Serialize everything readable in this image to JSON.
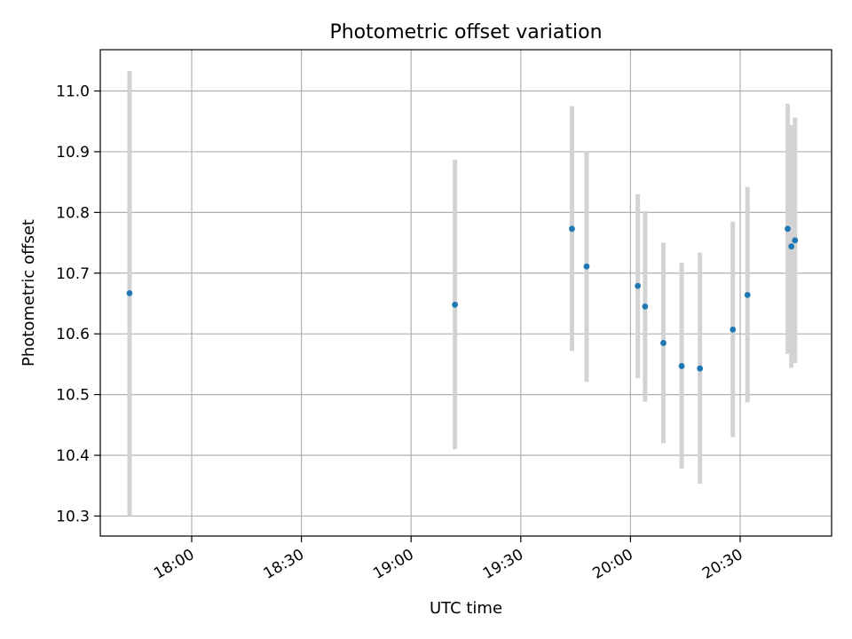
{
  "chart_data": {
    "type": "scatter",
    "title": "Photometric offset variation",
    "xlabel": "UTC time",
    "ylabel": "Photometric offset",
    "x_axis_type": "time",
    "xlim": [
      "17:35",
      "20:55"
    ],
    "ylim": [
      10.267,
      11.068
    ],
    "x_ticks": [
      "18:00",
      "18:30",
      "19:00",
      "19:30",
      "20:00",
      "20:30"
    ],
    "y_ticks": [
      "10.3",
      "10.4",
      "10.5",
      "10.6",
      "10.7",
      "10.8",
      "10.9",
      "11.0"
    ],
    "grid": true,
    "legend": "none",
    "colors": {
      "point": "#1f77b4",
      "errorbar": "#d3d3d3",
      "grid": "#b0b0b0",
      "axes": "#000000"
    },
    "points": [
      {
        "x": "17:43",
        "y": 10.667,
        "low": 10.3,
        "high": 11.033
      },
      {
        "x": "19:12",
        "y": 10.648,
        "low": 10.41,
        "high": 10.887
      },
      {
        "x": "19:44",
        "y": 10.773,
        "low": 10.572,
        "high": 10.975
      },
      {
        "x": "19:48",
        "y": 10.711,
        "low": 10.521,
        "high": 10.901
      },
      {
        "x": "20:02",
        "y": 10.679,
        "low": 10.527,
        "high": 10.83
      },
      {
        "x": "20:04",
        "y": 10.645,
        "low": 10.488,
        "high": 10.802
      },
      {
        "x": "20:09",
        "y": 10.585,
        "low": 10.42,
        "high": 10.75
      },
      {
        "x": "20:14",
        "y": 10.547,
        "low": 10.378,
        "high": 10.717
      },
      {
        "x": "20:19",
        "y": 10.543,
        "low": 10.353,
        "high": 10.734
      },
      {
        "x": "20:28",
        "y": 10.607,
        "low": 10.43,
        "high": 10.785
      },
      {
        "x": "20:32",
        "y": 10.664,
        "low": 10.487,
        "high": 10.842
      },
      {
        "x": "20:43",
        "y": 10.773,
        "low": 10.567,
        "high": 10.979
      },
      {
        "x": "20:44",
        "y": 10.744,
        "low": 10.544,
        "high": 10.944
      },
      {
        "x": "20:45",
        "y": 10.754,
        "low": 10.552,
        "high": 10.956
      }
    ]
  }
}
